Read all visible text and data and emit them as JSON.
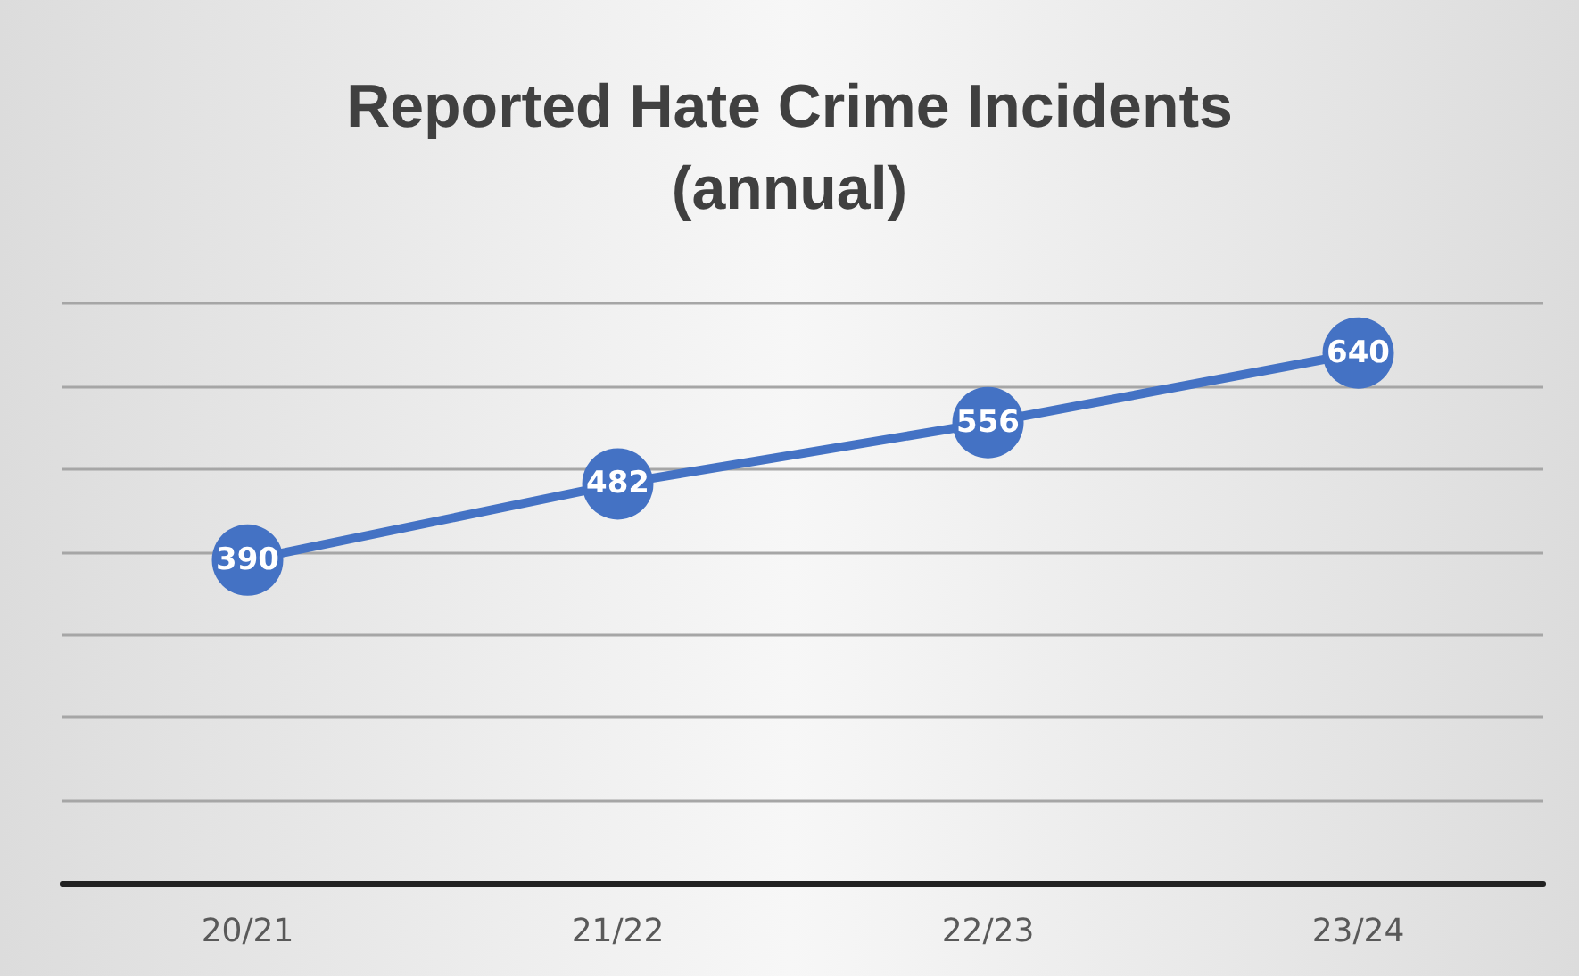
{
  "chart_data": {
    "type": "line",
    "title": "Reported Hate Crime Incidents\n(annual)",
    "categories": [
      "20/21",
      "21/22",
      "22/23",
      "23/24"
    ],
    "values": [
      390,
      482,
      556,
      640
    ],
    "color": "#4472c4",
    "ylim": [
      0,
      700
    ],
    "yticks": [
      {
        "value": 0,
        "label": null
      },
      {
        "value": 100,
        "label": null
      },
      {
        "value": 200,
        "label": null
      },
      {
        "value": 300,
        "label": null
      },
      {
        "value": 400,
        "label": null
      },
      {
        "value": 500,
        "label": null
      },
      {
        "value": 600,
        "label": null
      },
      {
        "value": 700,
        "label": null
      }
    ],
    "tick_labels": "x",
    "grid": "y",
    "marker": "circle",
    "line_style": "solid",
    "data_labels": true
  }
}
